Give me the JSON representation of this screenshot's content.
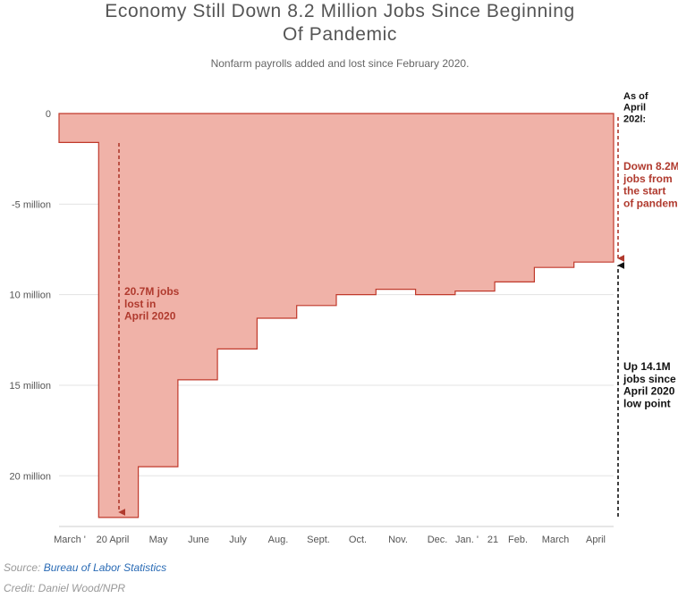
{
  "title": "Economy Still Down 8.2 Million Jobs Since Beginning\nOf Pandemic",
  "subtitle": "Nonfarm payrolls added and lost since February 2020.",
  "source_label": "Source:",
  "source_name": "Bureau of Labor Statistics",
  "credit": "Credit: Daniel Wood/NPR",
  "colors": {
    "area_fill": "#f0b2a8",
    "area_stroke": "#c0392b",
    "annotation_red": "#b03a2e",
    "annotation_black": "#111111",
    "grid": "#e3e3e3",
    "tick_text": "#555555"
  },
  "chart_data": {
    "type": "area",
    "step": true,
    "title": "Economy Still Down 8.2 Million Jobs Since Beginning Of Pandemic",
    "subtitle": "Nonfarm payrolls added and lost since February 2020.",
    "unit": "million jobs",
    "ylim": [
      -22.8,
      0
    ],
    "y_ticks": [
      {
        "value": 0,
        "label": "0"
      },
      {
        "value": -5,
        "label": "-5 million"
      },
      {
        "value": -10,
        "label": "10 million"
      },
      {
        "value": -15,
        "label": "15 million"
      },
      {
        "value": -20,
        "label": "20 million"
      }
    ],
    "x_tick_labels": [
      "March '",
      "20 April",
      "May",
      "June",
      "July",
      "Aug.",
      "Sept.",
      "Oct.",
      "Nov.",
      "Dec.",
      "Jan. '",
      "21",
      "Feb.",
      "March",
      "April"
    ],
    "categories": [
      "March 2020",
      "April 2020",
      "May 2020",
      "June 2020",
      "July 2020",
      "Aug. 2020",
      "Sept. 2020",
      "Oct. 2020",
      "Nov. 2020",
      "Dec. 2020",
      "Jan. 2021",
      "Feb. 2021",
      "March 2021",
      "April 2021"
    ],
    "values": [
      -1.6,
      -22.3,
      -19.5,
      -14.7,
      -13.0,
      -11.3,
      -10.6,
      -10.0,
      -9.7,
      -10.0,
      -9.8,
      -9.3,
      -8.5,
      -8.2
    ],
    "grid": true,
    "annotations": [
      {
        "text": "20.7M jobs lost in April 2020",
        "color": "red"
      },
      {
        "text": "As of April 202l:",
        "color": "black"
      },
      {
        "text": "Down 8.2M jobs from the start of pandemic",
        "color": "red"
      },
      {
        "text": "Up 14.1M jobs since April 2020 low point",
        "color": "black"
      }
    ]
  }
}
